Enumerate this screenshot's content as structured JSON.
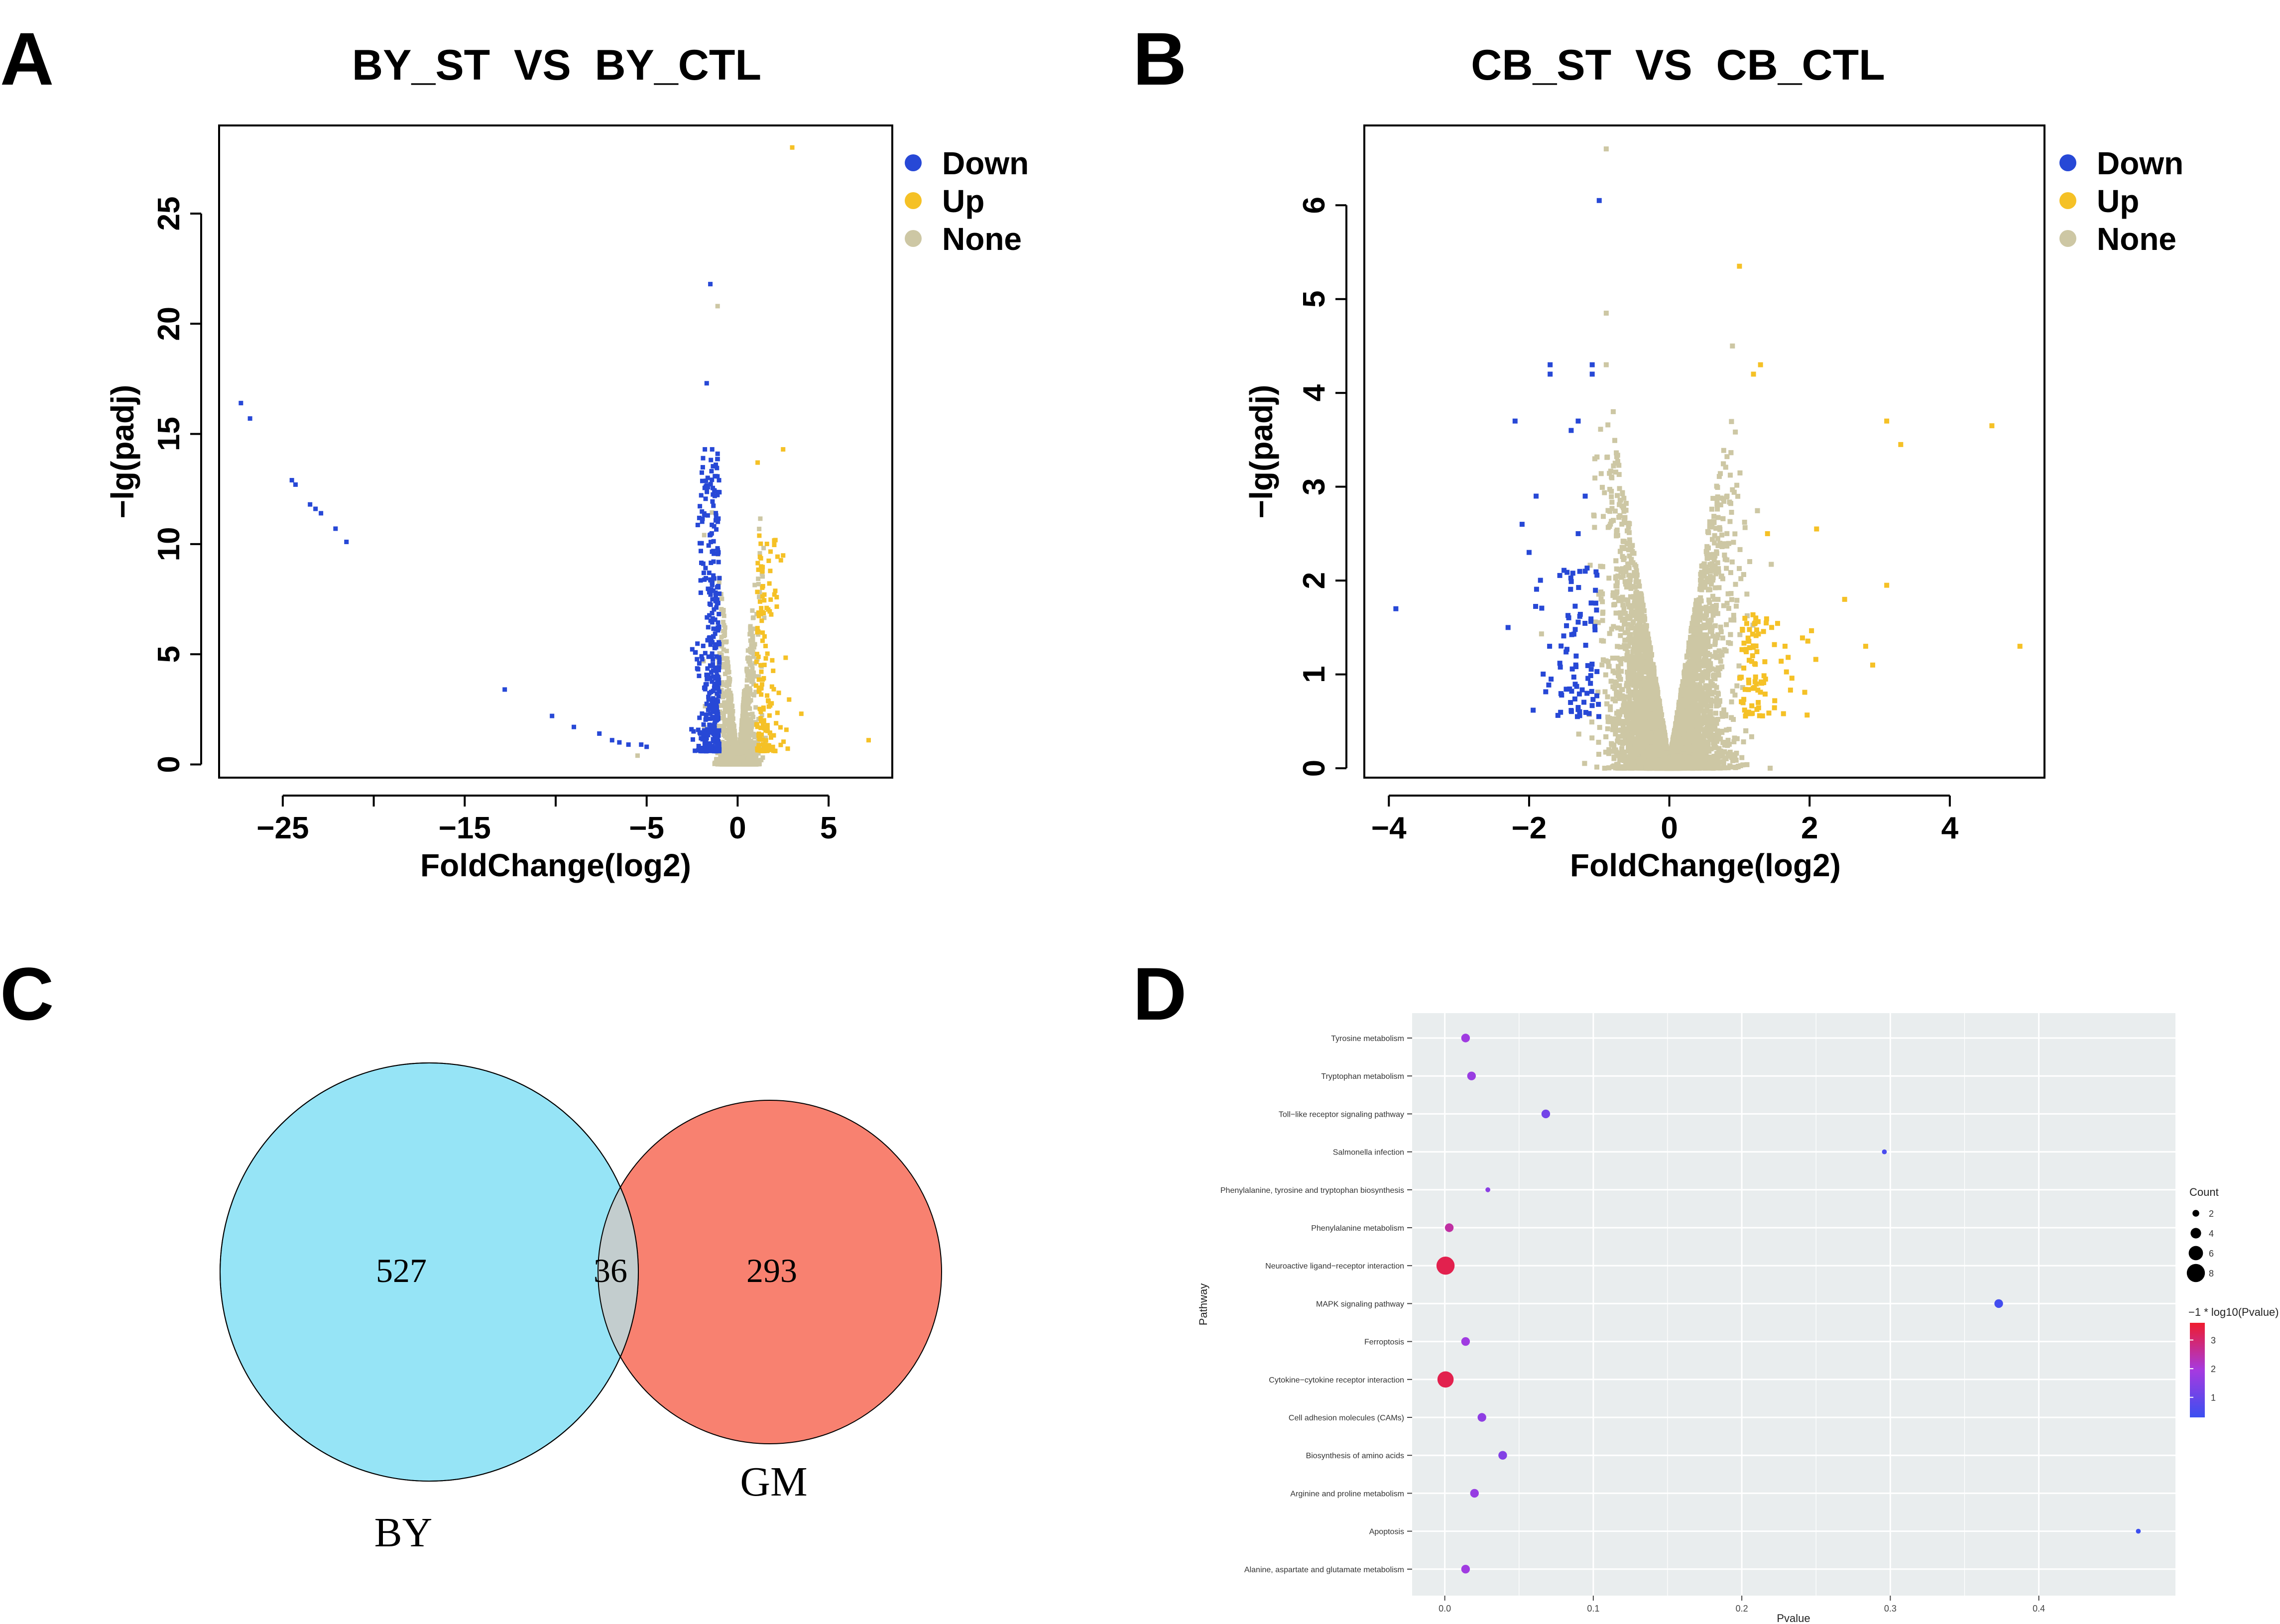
{
  "panels": {
    "A": "A",
    "B": "B",
    "C": "C",
    "D": "D"
  },
  "colors": {
    "down": "#2748d6",
    "up": "#f5c126",
    "none": "#cdc7a4",
    "venn_by": "#96e4f6",
    "venn_gm": "#f88170",
    "venn_overlap": "#c3cdce",
    "bubble_panel_bg": "#e9edee",
    "grad_low": "#3b4ff0",
    "grad_mid": "#a63ae0",
    "grad_high": "#ef1c2e"
  },
  "chart_data": [
    {
      "id": "A",
      "type": "scatter",
      "title": "BY_ST  VS  BY_CTL",
      "xlabel": "FoldChange(log2)",
      "ylabel": "−lg(padj)",
      "xlim": [
        -28.5,
        8.5
      ],
      "ylim": [
        -0.6,
        29
      ],
      "xticks": [
        -25,
        -20,
        -15,
        -10,
        -5,
        0,
        5
      ],
      "xtick_labels": [
        "−25",
        "",
        "−15",
        "",
        "−5",
        "0",
        "5"
      ],
      "yticks": [
        0,
        5,
        10,
        15,
        20,
        25
      ],
      "legend": [
        "Down",
        "Up",
        "None"
      ],
      "legend_position": "right",
      "down_extreme": [
        [
          -27.3,
          16.4
        ],
        [
          -26.8,
          15.7
        ],
        [
          -24.5,
          12.9
        ],
        [
          -24.3,
          12.7
        ],
        [
          -23.5,
          11.8
        ],
        [
          -23.2,
          11.6
        ],
        [
          -22.9,
          11.4
        ],
        [
          -22.1,
          10.7
        ],
        [
          -21.5,
          10.1
        ],
        [
          -12.8,
          3.4
        ],
        [
          -10.2,
          2.2
        ],
        [
          -9.0,
          1.7
        ],
        [
          -7.6,
          1.4
        ],
        [
          -6.9,
          1.1
        ],
        [
          -6.5,
          1.0
        ],
        [
          -6.0,
          0.9
        ],
        [
          -5.3,
          0.9
        ],
        [
          -5.0,
          0.8
        ],
        [
          -1.5,
          21.8
        ],
        [
          -1.7,
          17.3
        ],
        [
          -1.8,
          14.3
        ],
        [
          -1.4,
          14.3
        ],
        [
          -1.2,
          13.6
        ],
        [
          -1.9,
          13.9
        ],
        [
          -1.1,
          14.1
        ]
      ],
      "up_extreme": [
        [
          3.0,
          28.0
        ],
        [
          2.5,
          14.3
        ],
        [
          1.1,
          13.7
        ],
        [
          7.2,
          1.1
        ],
        [
          3.5,
          2.3
        ]
      ],
      "none_extreme": [
        [
          -1.1,
          20.8
        ],
        [
          -5.5,
          0.4
        ]
      ],
      "generated_cloud": {
        "down_n": 360,
        "up_n": 150,
        "none_n": 1400
      }
    },
    {
      "id": "B",
      "type": "scatter",
      "title": "CB_ST  VS  CB_CTL",
      "xlabel": "FoldChange(log2)",
      "ylabel": "−lg(padj)",
      "xlim": [
        -4.35,
        5.35
      ],
      "ylim": [
        -0.1,
        6.85
      ],
      "xticks": [
        -4,
        -2,
        0,
        2,
        4
      ],
      "xtick_labels": [
        "−4",
        "−2",
        "0",
        "2",
        "4"
      ],
      "yticks": [
        0,
        1,
        2,
        3,
        4,
        5,
        6
      ],
      "legend": [
        "Down",
        "Up",
        "None"
      ],
      "legend_position": "right",
      "down_extreme": [
        [
          -3.9,
          1.7
        ],
        [
          -2.3,
          1.5
        ],
        [
          -2.2,
          3.7
        ],
        [
          -2.1,
          2.6
        ],
        [
          -2.0,
          2.3
        ],
        [
          -1.9,
          2.9
        ],
        [
          -1.7,
          4.3
        ],
        [
          -1.7,
          4.2
        ],
        [
          -1.4,
          3.6
        ],
        [
          -1.3,
          3.7
        ],
        [
          -1.3,
          2.5
        ],
        [
          -1.2,
          2.9
        ],
        [
          -1.2,
          2.1
        ],
        [
          -1.1,
          4.3
        ],
        [
          -1.1,
          4.2
        ],
        [
          -1.0,
          6.05
        ]
      ],
      "up_extreme": [
        [
          1.0,
          5.35
        ],
        [
          1.3,
          4.3
        ],
        [
          1.2,
          4.2
        ],
        [
          2.1,
          2.55
        ],
        [
          1.4,
          2.5
        ],
        [
          3.1,
          3.7
        ],
        [
          3.3,
          3.45
        ],
        [
          4.6,
          3.65
        ],
        [
          5.0,
          1.3
        ],
        [
          3.1,
          1.95
        ],
        [
          2.8,
          1.3
        ],
        [
          2.9,
          1.1
        ],
        [
          2.5,
          1.8
        ]
      ],
      "none_extreme": [
        [
          -0.9,
          6.6
        ],
        [
          -0.9,
          4.85
        ],
        [
          0.9,
          4.5
        ],
        [
          -0.9,
          4.3
        ],
        [
          -0.8,
          3.8
        ]
      ],
      "generated_cloud": {
        "down_n": 90,
        "up_n": 90,
        "none_n": 6500
      }
    },
    {
      "id": "C",
      "type": "venn",
      "sets": [
        {
          "name": "BY",
          "only": 527
        },
        {
          "name": "GM",
          "only": 293
        }
      ],
      "overlap": 36,
      "labels": {
        "BY": "BY",
        "GM": "GM",
        "left": "527",
        "mid": "36",
        "right": "293"
      }
    },
    {
      "id": "D",
      "type": "scatter",
      "xlabel": "Pvalue",
      "ylabel": "Pathway",
      "xlim": [
        -0.022,
        0.492
      ],
      "xticks": [
        0.0,
        0.1,
        0.2,
        0.3,
        0.4
      ],
      "xtick_labels": [
        "0.0",
        "0.1",
        "0.2",
        "0.3",
        "0.4"
      ],
      "size_legend_title": "Count",
      "size_legend": [
        2,
        4,
        6,
        8
      ],
      "color_legend_title": "−1 * log10(Pvalue)",
      "color_legend_ticks": [
        1,
        2,
        3
      ],
      "color_range": [
        0.3,
        3.6
      ],
      "points": [
        {
          "pathway": "Tyrosine metabolism",
          "pvalue": 0.014,
          "count": 3
        },
        {
          "pathway": "Tryptophan metabolism",
          "pvalue": 0.018,
          "count": 3
        },
        {
          "pathway": "Toll−like receptor signaling pathway",
          "pvalue": 0.068,
          "count": 3
        },
        {
          "pathway": "Salmonella infection",
          "pvalue": 0.296,
          "count": 1
        },
        {
          "pathway": "Phenylalanine, tyrosine and tryptophan biosynthesis",
          "pvalue": 0.029,
          "count": 1
        },
        {
          "pathway": "Phenylalanine metabolism",
          "pvalue": 0.003,
          "count": 3
        },
        {
          "pathway": "Neuroactive ligand−receptor interaction",
          "pvalue": 0.0005,
          "count": 8
        },
        {
          "pathway": "MAPK signaling pathway",
          "pvalue": 0.373,
          "count": 3
        },
        {
          "pathway": "Ferroptosis",
          "pvalue": 0.014,
          "count": 3
        },
        {
          "pathway": "Cytokine−cytokine receptor interaction",
          "pvalue": 0.0005,
          "count": 7
        },
        {
          "pathway": "Cell adhesion molecules (CAMs)",
          "pvalue": 0.025,
          "count": 3
        },
        {
          "pathway": "Biosynthesis of amino acids",
          "pvalue": 0.039,
          "count": 3
        },
        {
          "pathway": "Arginine and proline metabolism",
          "pvalue": 0.02,
          "count": 3
        },
        {
          "pathway": "Apoptosis",
          "pvalue": 0.467,
          "count": 1
        },
        {
          "pathway": "Alanine, aspartate and glutamate metabolism",
          "pvalue": 0.014,
          "count": 3
        }
      ]
    }
  ]
}
